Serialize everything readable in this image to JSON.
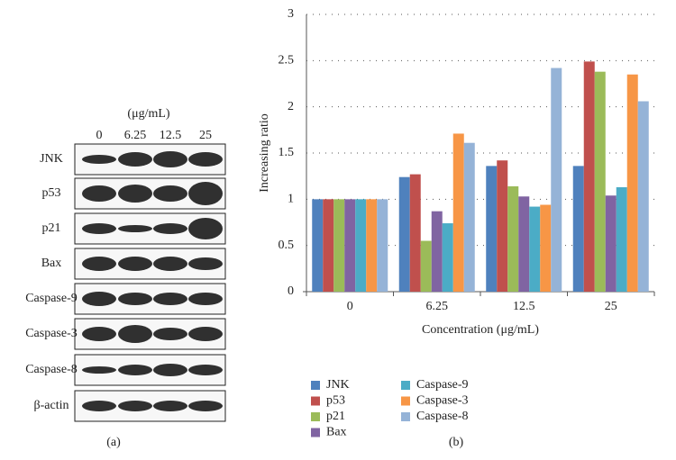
{
  "blot": {
    "unit_label": "(μg/mL)",
    "lanes": [
      "0",
      "6.25",
      "12.5",
      "25"
    ],
    "rows": [
      "JNK",
      "p53",
      "p21",
      "Bax",
      "Caspase-9",
      "Caspase-3",
      "Caspase-8",
      "β-actin"
    ],
    "panel_label": "(a)"
  },
  "chart_data": {
    "type": "bar",
    "panel_label": "(b)",
    "x_label": "Concentration (μg/mL)",
    "y_label": "Increasing ratio",
    "categories": [
      "0",
      "6.25",
      "12.5",
      "25"
    ],
    "ylim": [
      0,
      3
    ],
    "yticks": [
      0,
      0.5,
      1,
      1.5,
      2,
      2.5,
      3
    ],
    "grid": true,
    "series": [
      {
        "name": "JNK",
        "color": "#4f81bd",
        "values": [
          1,
          1.24,
          1.36,
          1.36
        ]
      },
      {
        "name": "p53",
        "color": "#c0504d",
        "values": [
          1,
          1.27,
          1.42,
          2.49
        ]
      },
      {
        "name": "p21",
        "color": "#9bbb59",
        "values": [
          1,
          0.55,
          1.14,
          2.38
        ]
      },
      {
        "name": "Bax",
        "color": "#8064a2",
        "values": [
          1,
          0.87,
          1.03,
          1.04
        ]
      },
      {
        "name": "Caspase-9",
        "color": "#4bacc6",
        "values": [
          1,
          0.74,
          0.92,
          1.13
        ]
      },
      {
        "name": "Caspase-3",
        "color": "#f79646",
        "values": [
          1,
          1.71,
          0.94,
          2.35
        ]
      },
      {
        "name": "Caspase-8",
        "color": "#95b3d7",
        "values": [
          1,
          1.61,
          2.42,
          2.06
        ]
      }
    ]
  }
}
